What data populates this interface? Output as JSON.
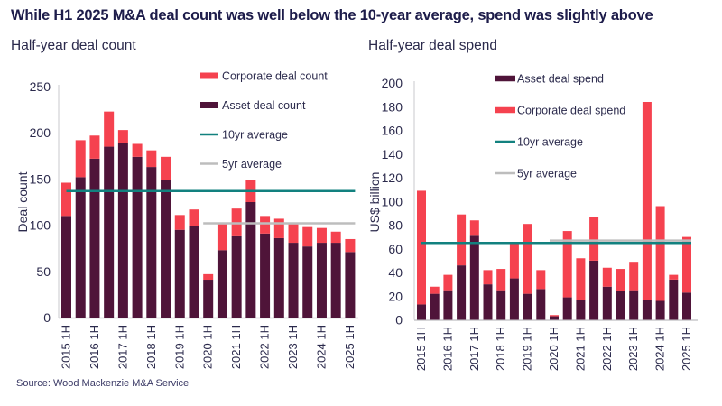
{
  "title": "While H1 2025 M&A deal count was well below the 10-year average, spend was slightly above",
  "source": "Source: Wood Mackenzie M&A Service",
  "colors": {
    "asset": "#4f1439",
    "corporate": "#f5424f",
    "avg10": "#12817f",
    "avg5": "#bdbdbd",
    "axis": "#c8c8cc",
    "text": "#2b2a4c"
  },
  "chart_data": [
    {
      "type": "bar",
      "stacked": true,
      "title": "Half-year deal count",
      "xlabel": "",
      "ylabel": "Deal count",
      "ylim": [
        0,
        250
      ],
      "yticks": [
        0,
        50,
        100,
        150,
        200,
        250
      ],
      "grid": false,
      "legend_position": "top-right",
      "categories": [
        "2015 1H",
        "2015 2H",
        "2016 1H",
        "2016 2H",
        "2017 1H",
        "2017 2H",
        "2018 1H",
        "2018 2H",
        "2019 1H",
        "2019 2H",
        "2020 1H",
        "2020 2H",
        "2021 1H",
        "2021 2H",
        "2022 1H",
        "2022 2H",
        "2023 1H",
        "2023 2H",
        "2024 1H",
        "2024 2H",
        "2025 1H"
      ],
      "xtick_labels": [
        "2015 1H",
        "2016 1H",
        "2017 1H",
        "2018 1H",
        "2019 1H",
        "2020 1H",
        "2021 1H",
        "2022 1H",
        "2023 1H",
        "2024 1H",
        "2025 1H"
      ],
      "series": [
        {
          "name": "Asset deal count",
          "color_key": "asset",
          "values": [
            110,
            152,
            172,
            185,
            189,
            174,
            163,
            149,
            95,
            99,
            41,
            73,
            88,
            125,
            91,
            86,
            81,
            77,
            81,
            81,
            71
          ]
        },
        {
          "name": "Corporate deal count",
          "color_key": "corporate",
          "values": [
            36,
            40,
            25,
            38,
            14,
            14,
            18,
            25,
            16,
            18,
            6,
            28,
            30,
            24,
            19,
            21,
            20,
            21,
            16,
            12,
            14
          ]
        }
      ],
      "lines": [
        {
          "name": "10yr average",
          "color_key": "avg10",
          "value": 137,
          "from_category": "2015 1H",
          "to_category": "2025 1H"
        },
        {
          "name": "5yr average",
          "color_key": "avg5",
          "value": 102,
          "from_category": "2020 1H",
          "to_category": "2025 1H"
        }
      ],
      "legend": [
        {
          "label": "Corporate deal count",
          "kind": "box",
          "color_key": "corporate"
        },
        {
          "label": "Asset deal count",
          "kind": "box",
          "color_key": "asset"
        },
        {
          "label": "10yr average",
          "kind": "line",
          "color_key": "avg10"
        },
        {
          "label": "5yr average",
          "kind": "line",
          "color_key": "avg5"
        }
      ]
    },
    {
      "type": "bar",
      "stacked": true,
      "title": "Half-year deal spend",
      "xlabel": "",
      "ylabel": "US$ billion",
      "ylim": [
        0,
        200
      ],
      "yticks": [
        0,
        20,
        40,
        60,
        80,
        100,
        120,
        140,
        160,
        180,
        200
      ],
      "grid": false,
      "legend_position": "top-center",
      "categories": [
        "2015 1H",
        "2015 2H",
        "2016 1H",
        "2016 2H",
        "2017 1H",
        "2017 2H",
        "2018 1H",
        "2018 2H",
        "2019 1H",
        "2019 2H",
        "2020 1H",
        "2020 2H",
        "2021 1H",
        "2021 2H",
        "2022 1H",
        "2022 2H",
        "2023 1H",
        "2023 2H",
        "2024 1H",
        "2024 2H",
        "2025 1H"
      ],
      "xtick_labels": [
        "2015 1H",
        "2016 1H",
        "2017 1H",
        "2018 1H",
        "2019 1H",
        "2020 1H",
        "2021 1H",
        "2022 1H",
        "2023 1H",
        "2024 1H",
        "2025 1H"
      ],
      "series": [
        {
          "name": "Asset deal spend",
          "color_key": "asset",
          "values": [
            13,
            22,
            25,
            46,
            71,
            30,
            25,
            35,
            22,
            26,
            3,
            19,
            17,
            50,
            28,
            24,
            25,
            17,
            16,
            34,
            23
          ]
        },
        {
          "name": "Corporate deal spend",
          "color_key": "corporate",
          "values": [
            96,
            6,
            13,
            43,
            13,
            12,
            18,
            29,
            59,
            16,
            1,
            56,
            35,
            37,
            16,
            19,
            24,
            167,
            80,
            4,
            47
          ]
        }
      ],
      "lines": [
        {
          "name": "10yr average",
          "color_key": "avg10",
          "value": 65,
          "from_category": "2015 1H",
          "to_category": "2025 1H"
        },
        {
          "name": "5yr average",
          "color_key": "avg5",
          "value": 67,
          "from_category": "2020 1H",
          "to_category": "2025 1H"
        }
      ],
      "legend": [
        {
          "label": "Asset deal spend",
          "kind": "box",
          "color_key": "asset"
        },
        {
          "label": "Corporate deal spend",
          "kind": "box",
          "color_key": "corporate"
        },
        {
          "label": "10yr average",
          "kind": "line",
          "color_key": "avg10"
        },
        {
          "label": "5yr average",
          "kind": "line",
          "color_key": "avg5"
        }
      ]
    }
  ]
}
